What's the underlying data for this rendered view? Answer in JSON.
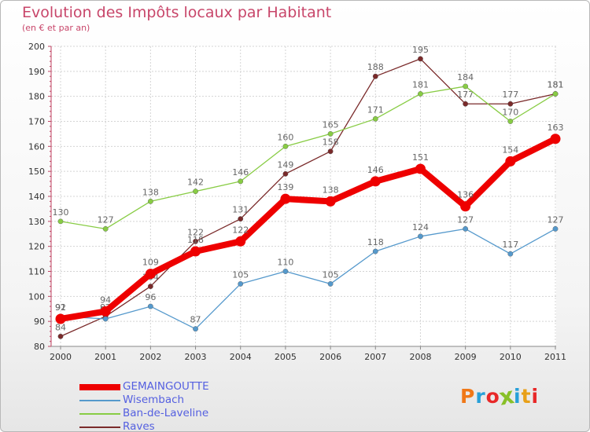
{
  "header": {
    "title": "Evolution des Impôts locaux par Habitant",
    "subtitle": "(en € et par an)"
  },
  "brand": {
    "logo_text": "Proxiti",
    "logo_colors": [
      "#f07818",
      "#28a0d8",
      "#e82828",
      "#88c028",
      "#28a0d8",
      "#e8a018",
      "#e82828"
    ]
  },
  "chart_data": {
    "type": "line",
    "title": "Evolution des Impôts locaux par Habitant",
    "subtitle": "(en € et par an)",
    "xlabel": "",
    "ylabel": "",
    "categories": [
      "2000",
      "2001",
      "2002",
      "2003",
      "2004",
      "2005",
      "2006",
      "2007",
      "2008",
      "2009",
      "2010",
      "2011"
    ],
    "ylim": [
      80,
      200
    ],
    "yticks": [
      80,
      90,
      100,
      110,
      120,
      130,
      140,
      150,
      160,
      170,
      180,
      190,
      200
    ],
    "grid": true,
    "legend_position": "bottom-left",
    "series": [
      {
        "name": "Raves",
        "color": "#7a2a2a",
        "values": [
          84,
          92,
          104,
          122,
          131,
          149,
          158,
          188,
          195,
          177,
          177,
          181
        ]
      },
      {
        "name": "Ban-de-Laveline",
        "color": "#88cc44",
        "values": [
          130,
          127,
          138,
          142,
          146,
          160,
          165,
          171,
          181,
          184,
          170,
          181
        ]
      },
      {
        "name": "Wisembach",
        "color": "#5599cc",
        "values": [
          92,
          91,
          96,
          87,
          105,
          110,
          105,
          118,
          124,
          127,
          117,
          127
        ]
      },
      {
        "name": "GEMAINGOUTTE",
        "color": "#ee0000",
        "values": [
          91,
          94,
          109,
          118,
          122,
          139,
          138,
          146,
          151,
          136,
          154,
          163
        ]
      }
    ],
    "legend_order": [
      "GEMAINGOUTTE",
      "Wisembach",
      "Ban-de-Laveline",
      "Raves"
    ]
  }
}
